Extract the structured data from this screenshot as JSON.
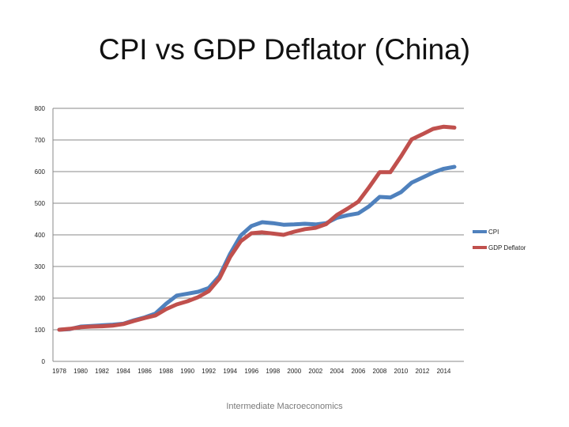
{
  "slide": {
    "footer": "Intermediate Macroeconomics"
  },
  "chart_data": {
    "type": "line",
    "title": "CPI vs GDP Deflator (China)",
    "xlabel": "",
    "ylabel": "",
    "ylim": [
      0,
      800
    ],
    "yticks": [
      "0",
      "100",
      "200",
      "300",
      "400",
      "500",
      "600",
      "700",
      "800"
    ],
    "xticks": [
      "1978",
      "1980",
      "1982",
      "1984",
      "1986",
      "1988",
      "1990",
      "1992",
      "1994",
      "1996",
      "1998",
      "2000",
      "2002",
      "2004",
      "2006",
      "2008",
      "2010",
      "2012",
      "2014"
    ],
    "grid": "horizontal",
    "legend": "right",
    "x": [
      1978,
      1979,
      1980,
      1981,
      1982,
      1983,
      1984,
      1985,
      1986,
      1987,
      1988,
      1989,
      1990,
      1991,
      1992,
      1993,
      1994,
      1995,
      1996,
      1997,
      1998,
      1999,
      2000,
      2001,
      2002,
      2003,
      2004,
      2005,
      2006,
      2007,
      2008,
      2009,
      2010,
      2011,
      2012,
      2013,
      2014,
      2015
    ],
    "series": [
      {
        "name": "CPI",
        "color": "#4f81bd",
        "values": [
          100,
          102,
          110,
          112,
          114,
          116,
          119,
          130,
          139,
          151,
          182,
          208,
          214,
          220,
          232,
          270,
          340,
          398,
          428,
          440,
          437,
          432,
          433,
          435,
          433,
          437,
          454,
          462,
          468,
          490,
          520,
          518,
          535,
          565,
          581,
          597,
          609,
          615
        ]
      },
      {
        "name": "GDP Deflator",
        "color": "#c0504d",
        "values": [
          100,
          103,
          108,
          110,
          111,
          113,
          118,
          128,
          137,
          145,
          165,
          180,
          190,
          203,
          222,
          262,
          330,
          380,
          405,
          408,
          404,
          400,
          410,
          418,
          422,
          434,
          463,
          483,
          505,
          550,
          598,
          598,
          648,
          702,
          718,
          735,
          742,
          739
        ]
      }
    ]
  }
}
